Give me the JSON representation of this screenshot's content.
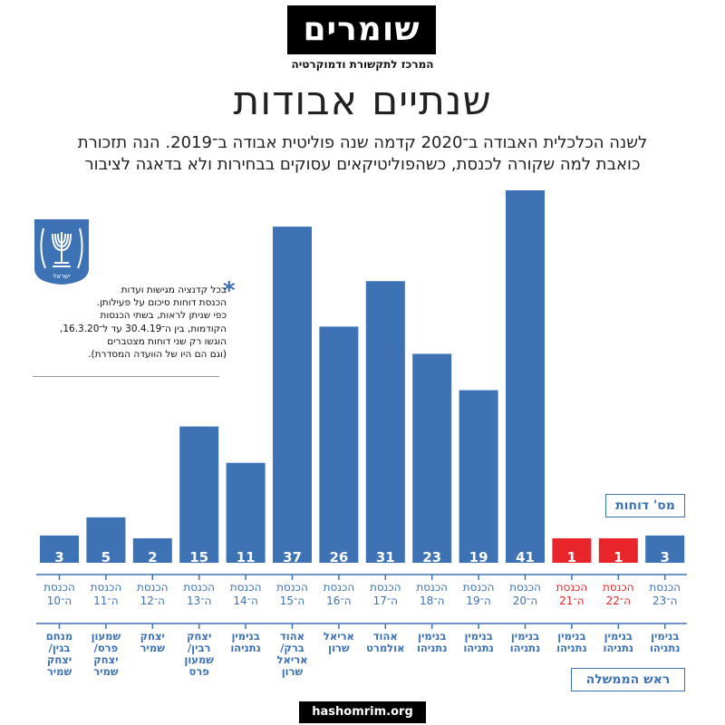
{
  "header": {
    "logo_text": "שומרים",
    "logo_subtitle": "המרכז לתקשורת ודמוקרטיה",
    "title": "שנתיים אבודות",
    "subtitle_line1": "לשנה הכלכלית האבודה ב־2020 קדמה שנה פוליטית אבודה ב־2019. הנה תזכורת",
    "subtitle_line2": "כואבת למה שקורה לכנסת, כשהפוליטיקאים עסוקים בבחירות ולא בדאגה לציבור"
  },
  "emblem": {
    "label": "ישראל"
  },
  "note": {
    "star": "*",
    "lines": [
      "בכל קדנציה מגישות ועדות",
      "הכנסת דוחות סיכום על פעילותן.",
      "כפי שניתן לראות, בשתי הכנסות",
      "הקודמות, בין ה־30.4.19 עד ל־16.3.20,",
      "הוגשו רק שני דוחות מצטברים",
      "(וגם הם היו של הוועדה המסדרת)."
    ]
  },
  "legend": {
    "count_label": "מס' דוחות",
    "pm_label": "ראש הממשלה"
  },
  "footer": {
    "site": "hashomrim.org"
  },
  "colors": {
    "blue": "#3d72b5",
    "red": "#e8252b",
    "text": "#222222"
  },
  "chart_data": {
    "type": "bar",
    "categories": [
      [
        "הכנסת",
        "ה־10"
      ],
      [
        "הכנסת",
        "ה־11"
      ],
      [
        "הכנסת",
        "ה־12"
      ],
      [
        "הכנסת",
        "ה־13"
      ],
      [
        "הכנסת",
        "ה־14"
      ],
      [
        "הכנסת",
        "ה־15"
      ],
      [
        "הכנסת",
        "ה־16"
      ],
      [
        "הכנסת",
        "ה־17"
      ],
      [
        "הכנסת",
        "ה־18"
      ],
      [
        "הכנסת",
        "ה־19"
      ],
      [
        "הכנסת",
        "ה־20"
      ],
      [
        "הכנסת",
        "ה־21"
      ],
      [
        "הכנסת",
        "ה־22"
      ],
      [
        "הכנסת",
        "ה־23"
      ]
    ],
    "values": [
      3,
      5,
      2,
      15,
      11,
      37,
      26,
      31,
      23,
      19,
      41,
      1,
      1,
      3
    ],
    "highlight": [
      false,
      false,
      false,
      false,
      false,
      false,
      false,
      false,
      false,
      false,
      false,
      true,
      true,
      false
    ],
    "prime_ministers": [
      [
        "מנחם",
        "בגין/",
        "יצחק",
        "שמיר"
      ],
      [
        "שמעון",
        "פרס/",
        "יצחק",
        "שמיר"
      ],
      [
        "יצחק",
        "שמיר"
      ],
      [
        "יצחק",
        "רבין/",
        "שמעון",
        "פרס"
      ],
      [
        "בנימין",
        "נתניהו"
      ],
      [
        "אהוד",
        "ברק/",
        "אריאל",
        "שרון"
      ],
      [
        "אריאל",
        "שרון"
      ],
      [
        "אהוד",
        "אולמרט"
      ],
      [
        "בנימין",
        "נתניהו"
      ],
      [
        "בנימין",
        "נתניהו"
      ],
      [
        "בנימין",
        "נתניהו"
      ],
      [
        "בנימין",
        "נתניהו"
      ],
      [
        "בנימין",
        "נתניהו"
      ],
      [
        "בנימין",
        "נתניהו"
      ]
    ],
    "ylim": [
      0,
      41
    ],
    "grid": false
  }
}
